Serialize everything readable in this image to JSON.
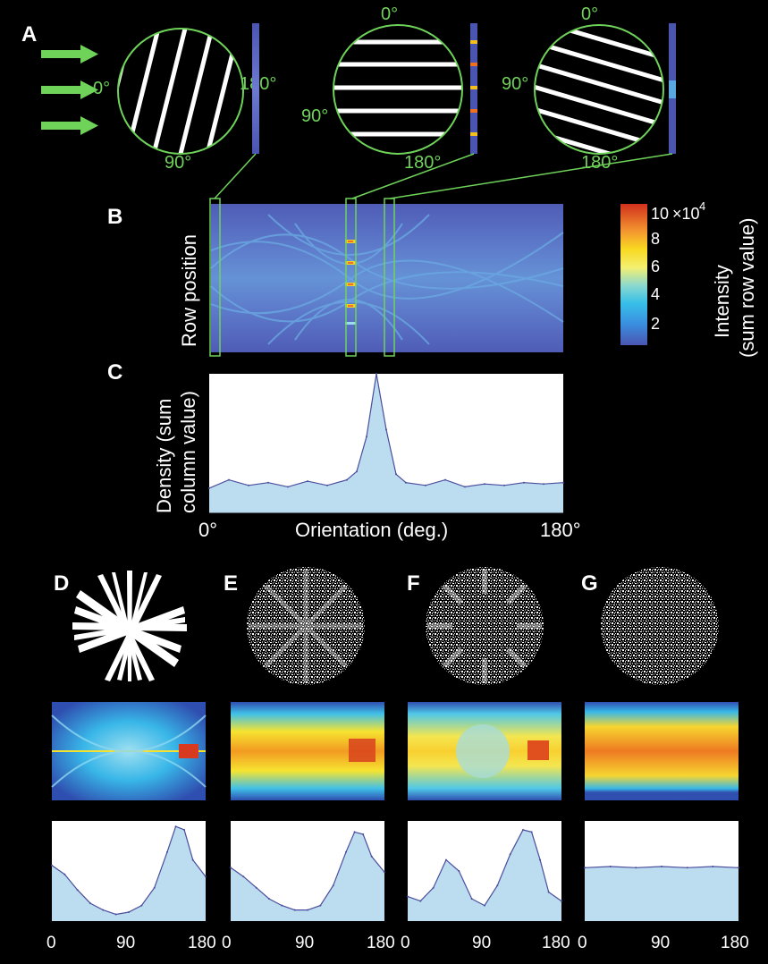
{
  "panels": {
    "A": "A",
    "B": "B",
    "C": "C",
    "D": "D",
    "E": "E",
    "F": "F",
    "G": "G"
  },
  "panel_a": {
    "circle1": {
      "top": "",
      "left": "0°",
      "bottom": "90°",
      "right": "180°"
    },
    "circle2": {
      "top": "0°",
      "left": "90°",
      "bottom": "180°"
    },
    "circle3": {
      "top": "0°",
      "left": "90°",
      "bottom": "180°"
    }
  },
  "panel_b": {
    "ylabel": "Row position",
    "colorbar": {
      "ticks": [
        "10",
        "8",
        "6",
        "4",
        "2"
      ],
      "multiplier": "×10",
      "exponent": "4",
      "label_line1": "Intensity",
      "label_line2": "(sum row value)"
    }
  },
  "panel_c": {
    "ylabel_line1": "Density (sum",
    "ylabel_line2": "column value)",
    "xlabel": "Orientation (deg.)",
    "x_start": "0°",
    "x_end": "180°"
  },
  "bottom_axes": {
    "ticks": [
      "0",
      "90",
      "180",
      "0",
      "90",
      "180",
      "0",
      "90",
      "180",
      "0",
      "90",
      "180"
    ]
  },
  "colors": {
    "green": "#6fd35a",
    "background": "#000000",
    "fill_light_blue": "#bcdcf0",
    "line_dark_blue": "#4a4e9c",
    "heatmap_low": "#4a55b0"
  },
  "chart_data": [
    {
      "type": "area",
      "panel": "C",
      "x": [
        0,
        10,
        20,
        30,
        40,
        50,
        60,
        70,
        75,
        80,
        85,
        90,
        95,
        100,
        110,
        120,
        130,
        140,
        150,
        160,
        170,
        180
      ],
      "values": [
        18,
        24,
        20,
        22,
        19,
        23,
        20,
        24,
        30,
        55,
        100,
        60,
        28,
        22,
        20,
        24,
        19,
        21,
        20,
        22,
        21,
        22
      ],
      "xlabel": "Orientation (deg.)",
      "ylabel": "Density (sum column value)",
      "xlim": [
        0,
        180
      ]
    },
    {
      "type": "area",
      "panel": "D",
      "x": [
        0,
        15,
        30,
        45,
        60,
        75,
        90,
        105,
        120,
        135,
        145,
        155,
        165,
        180
      ],
      "values": [
        50,
        42,
        28,
        16,
        10,
        6,
        8,
        14,
        30,
        62,
        85,
        82,
        55,
        40
      ],
      "xlim": [
        0,
        180
      ]
    },
    {
      "type": "area",
      "panel": "E",
      "x": [
        0,
        15,
        30,
        45,
        60,
        75,
        90,
        105,
        120,
        135,
        145,
        155,
        165,
        180
      ],
      "values": [
        48,
        40,
        30,
        20,
        14,
        10,
        10,
        14,
        32,
        62,
        80,
        78,
        58,
        44
      ],
      "xlim": [
        0,
        180
      ]
    },
    {
      "type": "area",
      "panel": "F",
      "x": [
        0,
        15,
        30,
        45,
        60,
        75,
        90,
        105,
        120,
        135,
        145,
        155,
        165,
        180
      ],
      "values": [
        22,
        18,
        30,
        55,
        45,
        20,
        14,
        32,
        60,
        82,
        80,
        55,
        26,
        18
      ],
      "xlim": [
        0,
        180
      ]
    },
    {
      "type": "area",
      "panel": "G",
      "x": [
        0,
        30,
        60,
        90,
        120,
        150,
        180
      ],
      "values": [
        48,
        49,
        48,
        49,
        48,
        49,
        48
      ],
      "xlim": [
        0,
        180
      ]
    },
    {
      "type": "heatmap",
      "panel": "B",
      "colorbar_ticks": [
        2,
        4,
        6,
        8,
        10
      ],
      "colorbar_multiplier": "×10^4"
    }
  ]
}
